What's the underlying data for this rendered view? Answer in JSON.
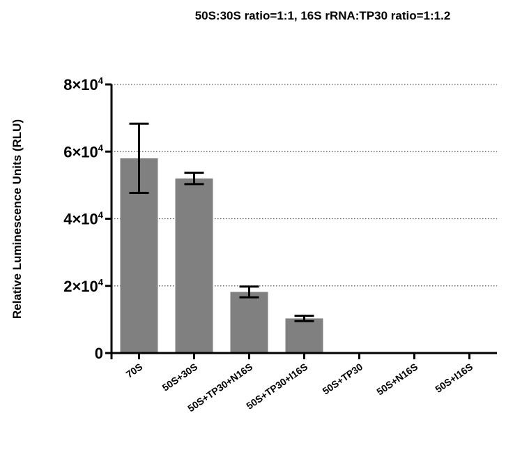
{
  "chart_data": {
    "type": "bar",
    "title": "50S:30S ratio=1:1, 16S rRNA:TP30 ratio=1:1.2",
    "ylabel": "Relative Luminescence Units (RLU)",
    "xlabel": "",
    "categories": [
      "70S",
      "50S+30S",
      "50S+TP30+N16S",
      "50S+TP30+I16S",
      "50S+TP30",
      "50S+N16S",
      "50S+I16S"
    ],
    "values": [
      58000,
      52000,
      18200,
      10300,
      0,
      0,
      0
    ],
    "errors": [
      10300,
      1700,
      1600,
      800,
      0,
      0,
      0
    ],
    "ylim": [
      0,
      80000
    ],
    "yticks": [
      {
        "value": 0,
        "mantissa": "0",
        "exp": ""
      },
      {
        "value": 20000,
        "mantissa": "2×10",
        "exp": "4"
      },
      {
        "value": 40000,
        "mantissa": "4×10",
        "exp": "4"
      },
      {
        "value": 60000,
        "mantissa": "6×10",
        "exp": "4"
      },
      {
        "value": 80000,
        "mantissa": "8×10",
        "exp": "4"
      }
    ],
    "grid": "horizontal-dotted",
    "bar_color": "#808080",
    "error_bar_color": "#000000"
  }
}
